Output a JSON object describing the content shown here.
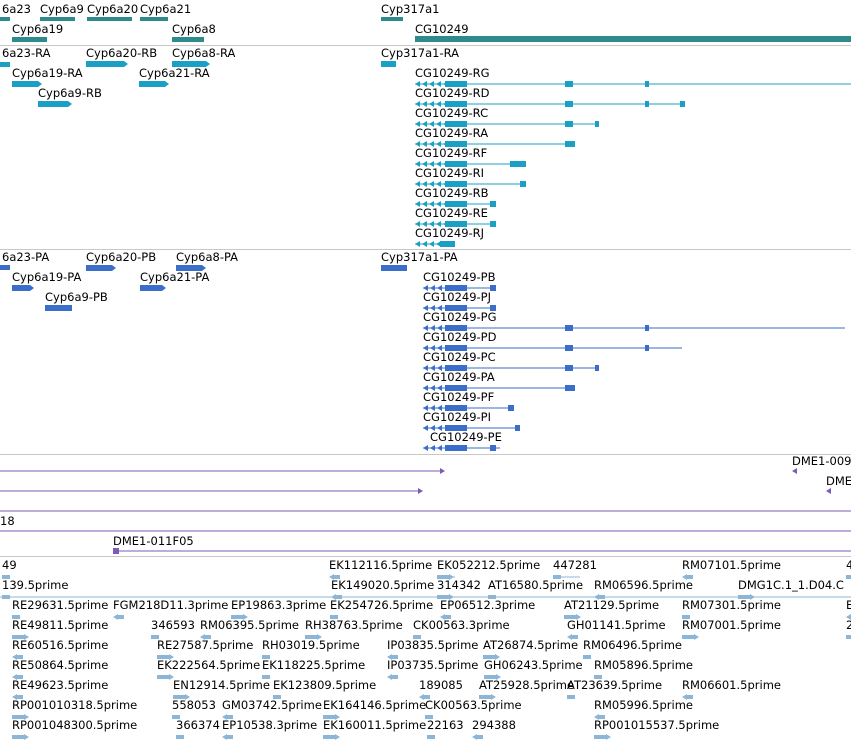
{
  "colors": {
    "gene": "#2e8b8b",
    "transcript": "#1aa0c4",
    "protein": "#3a6ec9",
    "clone": "#7b5bb5",
    "est": "#8cb6d8",
    "separator": "#c8c8c8"
  },
  "tracks": {
    "genes": {
      "labels": [
        "6a23",
        "Cyp6a9",
        "Cyp6a20",
        "Cyp6a21",
        "Cyp317a1",
        "Cyp6a19",
        "Cyp6a8",
        "CG10249"
      ]
    },
    "transcripts": {
      "labels": [
        "6a23-RA",
        "Cyp6a20-RB",
        "Cyp6a8-RA",
        "Cyp317a1-RA",
        "Cyp6a19-RA",
        "Cyp6a21-RA",
        "Cyp6a9-RB",
        "CG10249-RG",
        "CG10249-RD",
        "CG10249-RC",
        "CG10249-RA",
        "CG10249-RF",
        "CG10249-RI",
        "CG10249-RB",
        "CG10249-RE",
        "CG10249-RJ"
      ]
    },
    "proteins": {
      "labels": [
        "6a23-PA",
        "Cyp6a20-PB",
        "Cyp6a8-PA",
        "Cyp317a1-PA",
        "Cyp6a19-PA",
        "Cyp6a21-PA",
        "Cyp6a9-PB",
        "CG10249-PB",
        "CG10249-PJ",
        "CG10249-PG",
        "CG10249-PD",
        "CG10249-PC",
        "CG10249-PA",
        "CG10249-PF",
        "CG10249-PI",
        "CG10249-PE"
      ]
    },
    "clones": {
      "labels": [
        "DME1-009",
        "DME",
        "18",
        "DME1-011F05"
      ]
    },
    "ests": {
      "labels": [
        "49",
        "EK112116.5prime",
        "EK052212.5prime",
        "447281",
        "RM07101.5prime",
        "4",
        "139.5prime",
        "EK149020.5prime",
        "314342",
        "AT16580.5prime",
        "RM06596.5prime",
        "DMG1C.1_1.D04.C",
        "RE29631.5prime",
        "FGM218D11.3prime",
        "EP19863.3prime",
        "EK254726.5prime",
        "EP06512.3prime",
        "AT21129.5prime",
        "RM07301.5prime",
        "E",
        "RE49811.5prime",
        "346593",
        "RM06395.5prime",
        "RH38763.5prime",
        "CK00563.3prime",
        "GH01141.5prime",
        "RM07001.5prime",
        "2",
        "RE60516.5prime",
        "RE27587.5prime",
        "RH03019.5prime",
        "IP03835.5prime",
        "AT26874.5prime",
        "RM06496.5prime",
        "RE50864.5prime",
        "EK222564.5prime",
        "EK118225.5prime",
        "IP03735.5prime",
        "GH06243.5prime",
        "RM05896.5prime",
        "RE49623.5prime",
        "EN12914.5prime",
        "EK123809.5prime",
        "189085",
        "AT25928.5prime",
        "AT23639.5prime",
        "RM06601.5prime",
        "RP001010318.5prime",
        "558053",
        "GM03742.5prime",
        "EK164146.5prime",
        "CK00563.5prime",
        "RM05996.5prime",
        "RP001048300.5prime",
        "366374",
        "EP10538.3prime",
        "EK160011.5prime",
        "22163",
        "294388",
        "RP001015537.5prime"
      ]
    }
  }
}
